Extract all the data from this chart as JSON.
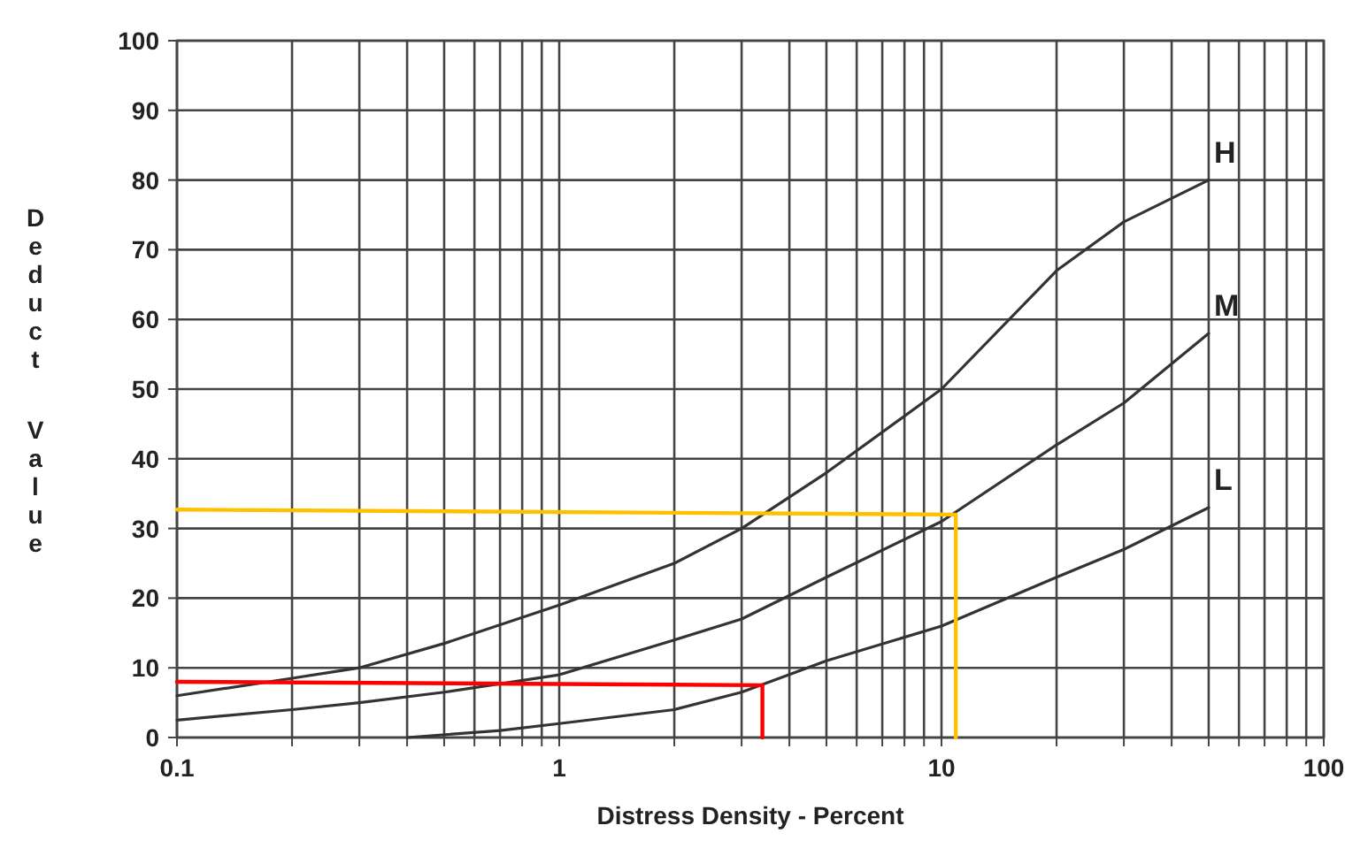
{
  "chart_data": {
    "type": "line",
    "xlabel": "Distress Density - Percent",
    "ylabel": "Deduct Value",
    "log": "x",
    "xlim": [
      0.1,
      100
    ],
    "ylim": [
      0,
      100
    ],
    "xticks": [
      0.1,
      {
        "value": 0.2,
        "label": null
      },
      {
        "value": 0.3,
        "label": null
      },
      {
        "value": 0.4,
        "label": null
      },
      {
        "value": 0.5,
        "label": null
      },
      {
        "value": 0.6,
        "label": null
      },
      {
        "value": 0.7,
        "label": null
      },
      {
        "value": 0.8,
        "label": null
      },
      {
        "value": 0.9,
        "label": null
      },
      1,
      {
        "value": 2,
        "label": null
      },
      {
        "value": 3,
        "label": null
      },
      {
        "value": 4,
        "label": null
      },
      {
        "value": 5,
        "label": null
      },
      {
        "value": 6,
        "label": null
      },
      {
        "value": 7,
        "label": null
      },
      {
        "value": 8,
        "label": null
      },
      {
        "value": 9,
        "label": null
      },
      10,
      {
        "value": 20,
        "label": null
      },
      {
        "value": 30,
        "label": null
      },
      {
        "value": 40,
        "label": null
      },
      {
        "value": 50,
        "label": null
      },
      {
        "value": 60,
        "label": null
      },
      {
        "value": 70,
        "label": null
      },
      {
        "value": 80,
        "label": null
      },
      {
        "value": 90,
        "label": null
      },
      100
    ],
    "yticks": [
      0,
      10,
      20,
      30,
      40,
      50,
      60,
      70,
      80,
      90,
      100
    ],
    "grid": true,
    "marker": "none",
    "line_style": "solid",
    "series": [
      {
        "name": "H",
        "color": "#333333",
        "x": [
          0.1,
          0.2,
          0.3,
          0.5,
          1,
          2,
          3,
          5,
          10,
          20,
          30,
          50
        ],
        "values": [
          6,
          8.5,
          10,
          13.5,
          19,
          25,
          30,
          38,
          50,
          67,
          74,
          80
        ]
      },
      {
        "name": "M",
        "color": "#333333",
        "x": [
          0.1,
          0.2,
          0.3,
          0.5,
          1,
          2,
          3,
          5,
          10,
          20,
          30,
          50
        ],
        "values": [
          2.5,
          4,
          5,
          6.5,
          9,
          14,
          17,
          23,
          31,
          42,
          48,
          58
        ]
      },
      {
        "name": "L",
        "color": "#333333",
        "x": [
          0.4,
          0.7,
          1,
          2,
          3,
          5,
          10,
          20,
          30,
          50
        ],
        "values": [
          0,
          1,
          2,
          4,
          6.5,
          11,
          16,
          23,
          27,
          33
        ]
      },
      {
        "color": "#ffc000",
        "x": [
          0.1,
          10.9,
          10.9
        ],
        "values": [
          32.7,
          32,
          0
        ]
      },
      {
        "color": "#ff0000",
        "x": [
          0.1,
          3.4,
          3.4
        ],
        "values": [
          8,
          7.5,
          0
        ]
      }
    ]
  }
}
